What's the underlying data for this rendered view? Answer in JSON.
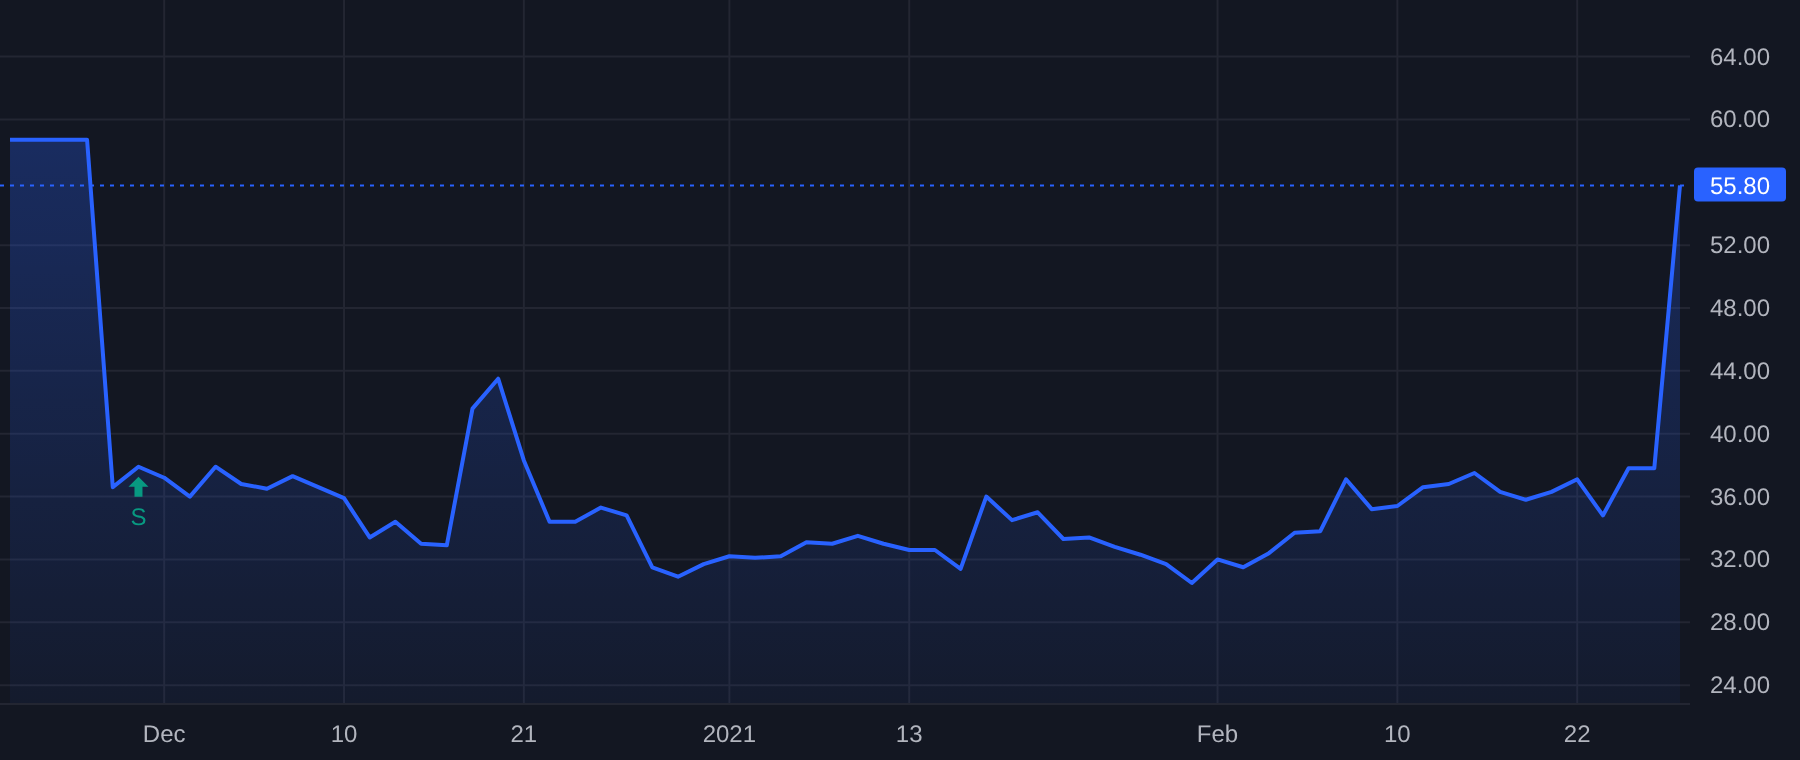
{
  "chart_data": {
    "type": "area",
    "categories": [
      null,
      null,
      null,
      null,
      null,
      null,
      "Dec",
      null,
      null,
      null,
      null,
      null,
      null,
      "10",
      null,
      null,
      null,
      null,
      null,
      null,
      "21",
      null,
      null,
      null,
      null,
      null,
      null,
      null,
      "2021",
      null,
      null,
      null,
      null,
      null,
      null,
      "13",
      null,
      null,
      null,
      null,
      null,
      null,
      null,
      null,
      null,
      null,
      null,
      "Feb",
      null,
      null,
      null,
      null,
      null,
      null,
      "10",
      null,
      null,
      null,
      null,
      null,
      null,
      "22",
      null,
      null,
      null,
      null
    ],
    "series": [
      {
        "color": "#2962ff",
        "values": [
          58.7,
          58.7,
          58.7,
          58.7,
          36.6,
          37.9,
          37.2,
          36.0,
          37.9,
          36.8,
          36.5,
          37.3,
          36.6,
          35.9,
          33.4,
          34.4,
          33.0,
          32.9,
          41.6,
          43.5,
          38.3,
          34.4,
          34.4,
          35.3,
          34.8,
          31.5,
          30.9,
          31.7,
          32.2,
          32.1,
          32.2,
          33.1,
          33.0,
          33.5,
          33.0,
          32.6,
          32.6,
          31.4,
          36.0,
          34.5,
          35.0,
          33.3,
          33.4,
          32.8,
          32.3,
          31.7,
          30.5,
          32.0,
          31.5,
          32.4,
          33.7,
          33.8,
          37.1,
          35.2,
          35.4,
          36.6,
          36.8,
          37.5,
          36.3,
          35.8,
          36.3,
          37.1,
          34.8,
          37.8,
          37.8,
          55.8
        ]
      }
    ],
    "ylim": [
      22.8,
      67.6
    ],
    "yticks": [
      {
        "value": 24,
        "label": "24.00"
      },
      {
        "value": 28,
        "label": "28.00"
      },
      {
        "value": 32,
        "label": "32.00"
      },
      {
        "value": 36,
        "label": "36.00"
      },
      {
        "value": 40,
        "label": "40.00"
      },
      {
        "value": 44,
        "label": "44.00"
      },
      {
        "value": 48,
        "label": "48.00"
      },
      {
        "value": 52,
        "label": "52.00"
      },
      {
        "value": 60,
        "label": "60.00"
      },
      {
        "value": 64,
        "label": "64.00"
      }
    ],
    "grid": true,
    "ref_lines": [
      {
        "axis": "y",
        "value": 55.8,
        "label": "55.80",
        "color": "#2962ff",
        "line_style": "dotted"
      }
    ],
    "annotations": [
      {
        "text": "S",
        "y": 37.9
      }
    ]
  }
}
